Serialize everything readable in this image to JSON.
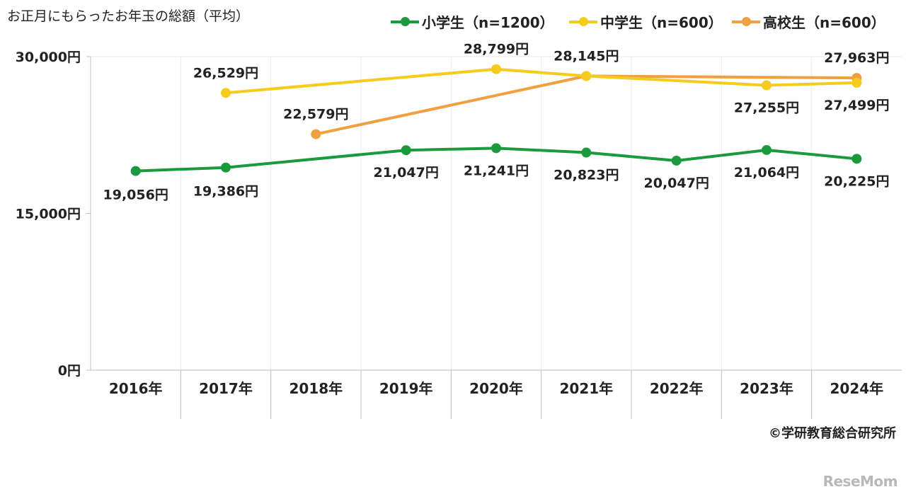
{
  "title": "お正月にもらったお年玉の総額（平均）",
  "credit": "©学研教育総合研究所",
  "logo": "ReseMom",
  "chart_data": {
    "type": "line",
    "title": "お正月にもらったお年玉の総額（平均）",
    "categories": [
      "2016年",
      "2017年",
      "2018年",
      "2019年",
      "2020年",
      "2021年",
      "2022年",
      "2023年",
      "2024年"
    ],
    "yticks": [
      "0円",
      "15,000円",
      "30,000円"
    ],
    "ylim": [
      0,
      30000
    ],
    "grid": "vertical",
    "legend": "top-right",
    "series": [
      {
        "name": "小学生（n=1200）",
        "color": "#1a9a3c",
        "values": [
          19056,
          19386,
          null,
          21047,
          21241,
          20823,
          20047,
          21064,
          20225
        ],
        "labels": [
          "19,056円",
          "19,386円",
          null,
          "21,047円",
          "21,241円",
          "20,823円",
          "20,047円",
          "21,064円",
          "20,225円"
        ]
      },
      {
        "name": "中学生（n=600）",
        "color": "#f5cc1d",
        "values": [
          null,
          26529,
          null,
          null,
          28799,
          28145,
          null,
          27255,
          27499
        ],
        "labels": [
          null,
          "26,529円",
          null,
          null,
          "28,799円",
          "28,145円",
          null,
          "27,255円",
          "27,499円"
        ]
      },
      {
        "name": "高校生（n=600）",
        "color": "#f0a040",
        "values": [
          null,
          null,
          22579,
          null,
          null,
          28145,
          null,
          null,
          27963
        ],
        "labels": [
          null,
          null,
          "22,579円",
          null,
          null,
          null,
          null,
          null,
          "27,963円"
        ]
      }
    ]
  }
}
